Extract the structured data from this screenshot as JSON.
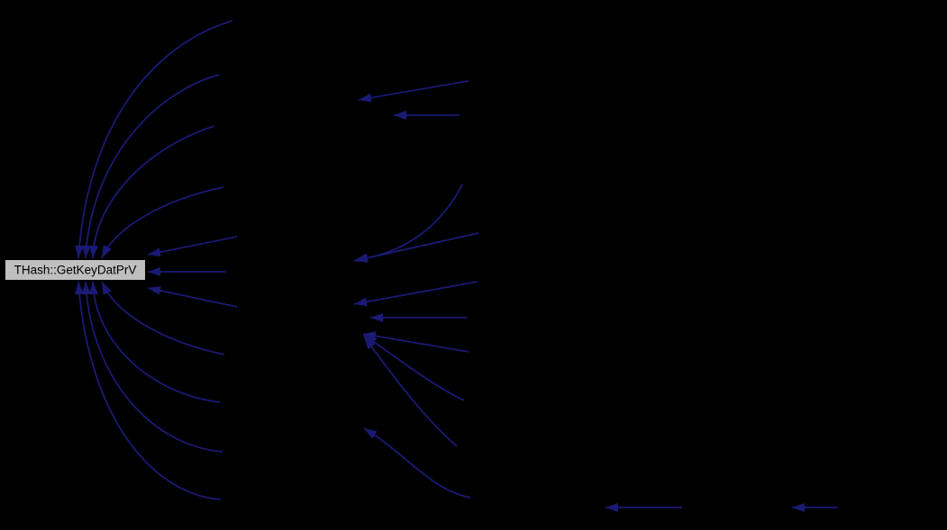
{
  "diagram": {
    "kind": "doxygen-caller-graph",
    "background_color": "#000000",
    "edge_color": "#1a1a74",
    "node": {
      "label": "THash::GetKeyDatPrV",
      "fill_color": "#bfbfbf",
      "border_color": "#000000",
      "text_color": "#000000"
    }
  }
}
